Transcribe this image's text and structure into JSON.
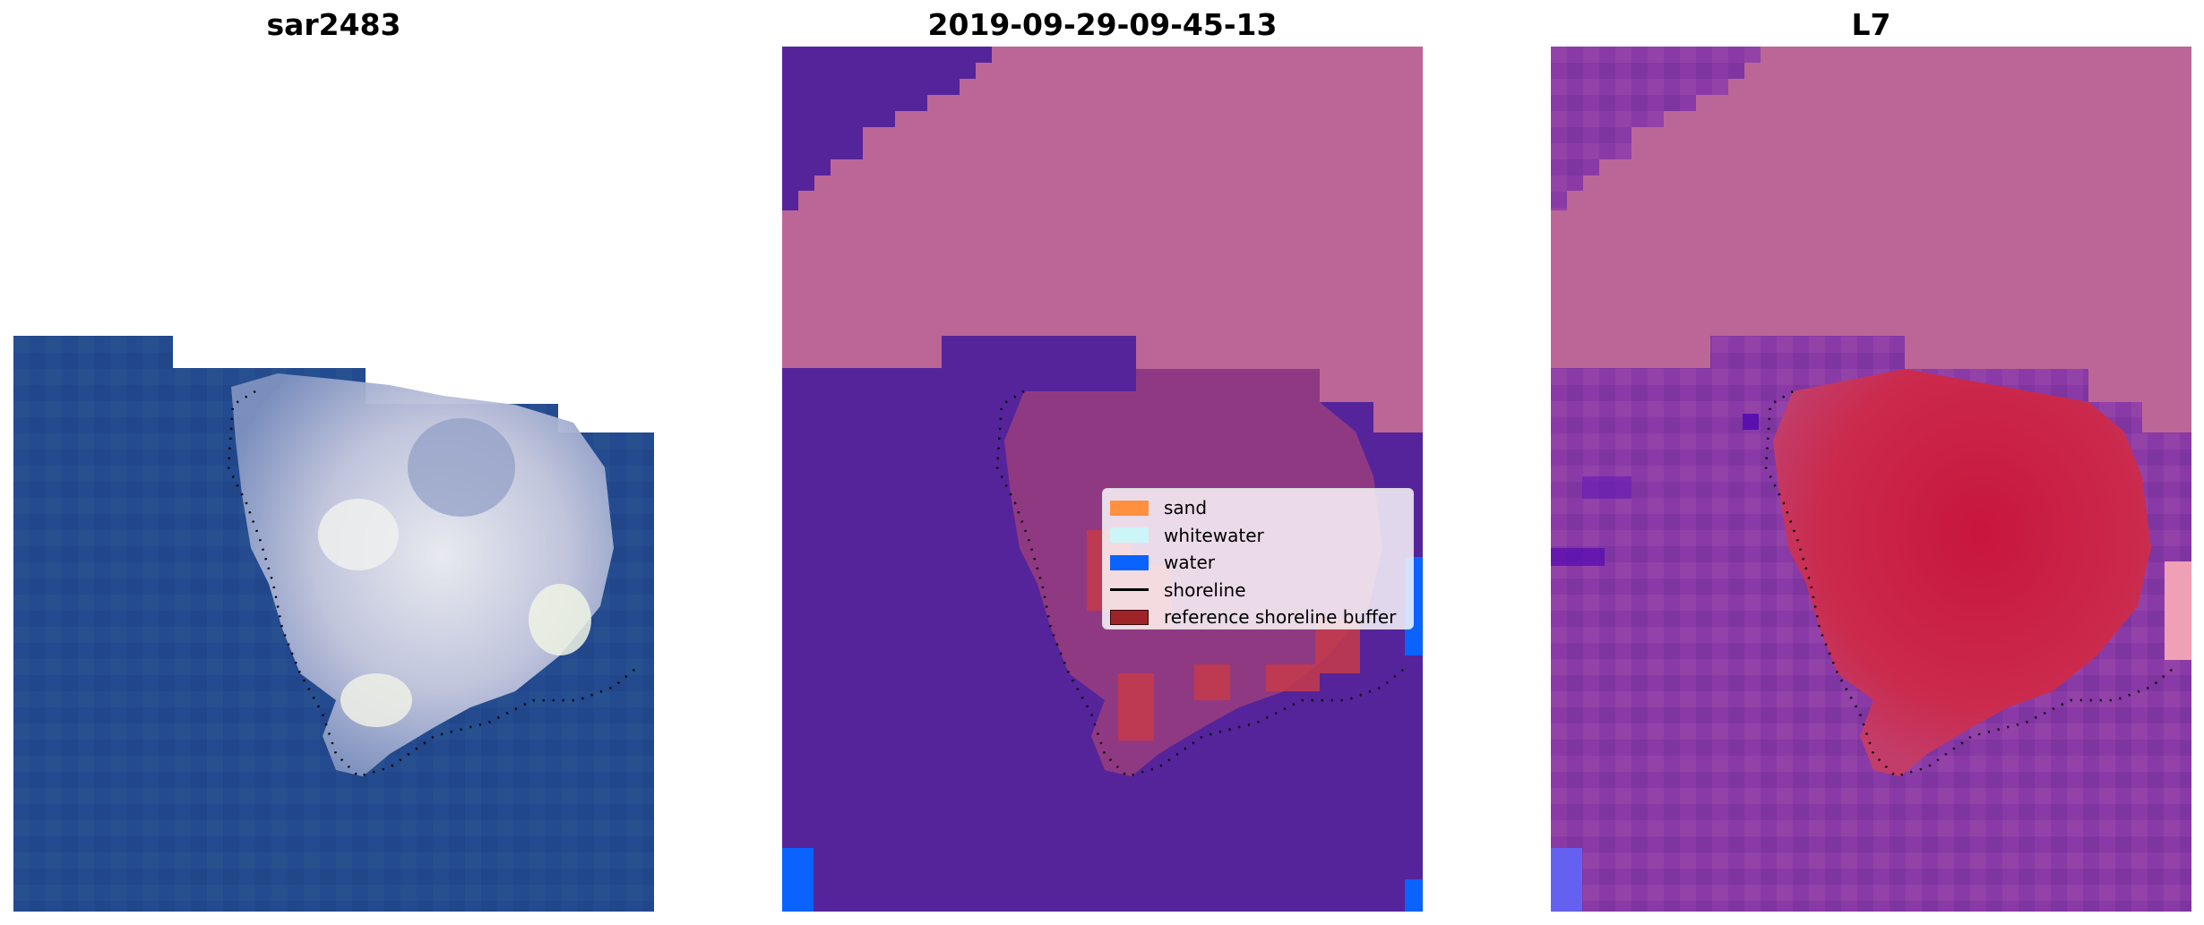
{
  "panels": [
    {
      "title": "sar2483"
    },
    {
      "title": "2019-09-29-09-45-13"
    },
    {
      "title": "L7"
    }
  ],
  "legend": {
    "items": [
      {
        "label": "sand",
        "color": "#ff9040"
      },
      {
        "label": "whitewater",
        "color": "#ccf5f8"
      },
      {
        "label": "water",
        "color": "#0a62ff"
      },
      {
        "label": "shoreline",
        "color": "#000000"
      },
      {
        "label": "reference shoreline buffer",
        "color": "#9e2428"
      }
    ]
  },
  "colors": {
    "rgb_water": "#244a8f",
    "class_land_nodata": "#bb6697",
    "class_other": "#55249a",
    "class_water_edge": "#0a62ff",
    "index_high": "#c8163d",
    "index_low": "#8a3aa6"
  }
}
